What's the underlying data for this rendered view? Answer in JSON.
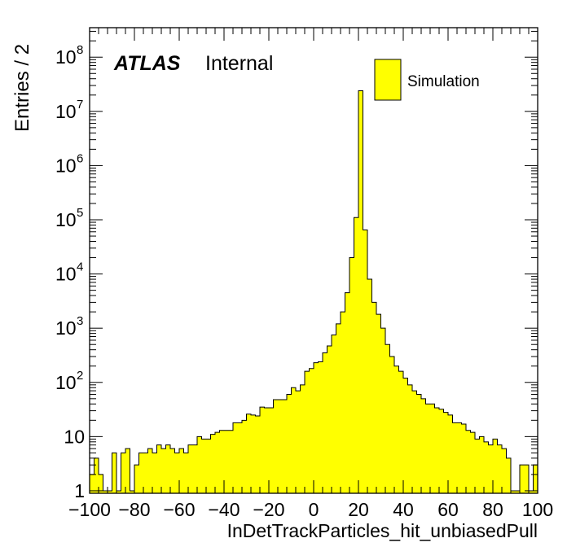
{
  "chart_data": {
    "type": "bar",
    "title": "",
    "xlabel": "InDetTrackParticles_hit_unbiasedPull",
    "ylabel": "Entries / 2",
    "xlim": [
      -100,
      100
    ],
    "ylim": [
      0.9,
      350000000.0
    ],
    "yscale": "log",
    "bin_width": 2,
    "bar_color": "#ffff00",
    "x_ticks": [
      "−100",
      "−80",
      "−60",
      "−40",
      "−20",
      "0",
      "20",
      "40",
      "60",
      "80",
      "100"
    ],
    "y_ticks": [
      {
        "base": "1",
        "exp": ""
      },
      {
        "base": "10",
        "exp": ""
      },
      {
        "base": "10",
        "exp": "2"
      },
      {
        "base": "10",
        "exp": "3"
      },
      {
        "base": "10",
        "exp": "4"
      },
      {
        "base": "10",
        "exp": "5"
      },
      {
        "base": "10",
        "exp": "6"
      },
      {
        "base": "10",
        "exp": "7"
      },
      {
        "base": "10",
        "exp": "8"
      }
    ],
    "annotations": {
      "atlas": "ATLAS",
      "status": "Internal"
    },
    "legend": {
      "position": "top-right",
      "label": "Simulation"
    },
    "series": [
      {
        "name": "Simulation",
        "bin_low_edges": [
          -100,
          -98,
          -96,
          -94,
          -92,
          -90,
          -88,
          -86,
          -84,
          -82,
          -80,
          -78,
          -76,
          -74,
          -72,
          -70,
          -68,
          -66,
          -64,
          -62,
          -60,
          -58,
          -56,
          -54,
          -52,
          -50,
          -48,
          -46,
          -44,
          -42,
          -40,
          -38,
          -36,
          -34,
          -32,
          -30,
          -28,
          -26,
          -24,
          -22,
          -20,
          -18,
          -16,
          -14,
          -12,
          -10,
          -8,
          -6,
          -4,
          -2,
          0,
          2,
          4,
          6,
          8,
          10,
          12,
          14,
          16,
          18,
          20,
          22,
          24,
          26,
          28,
          30,
          32,
          34,
          36,
          38,
          40,
          42,
          44,
          46,
          48,
          50,
          52,
          54,
          56,
          58,
          60,
          62,
          64,
          66,
          68,
          70,
          72,
          74,
          76,
          78,
          80,
          82,
          84,
          86,
          88,
          90,
          92,
          94,
          96,
          98
        ],
        "values": [
          2,
          4,
          2,
          1,
          1,
          5,
          1,
          5,
          6,
          1,
          3,
          5,
          5,
          6,
          5,
          7,
          6,
          7,
          6,
          5,
          6,
          5,
          7,
          7,
          10,
          9,
          9,
          11,
          12,
          13,
          13,
          13,
          18,
          18,
          20,
          26,
          25,
          24,
          35,
          34,
          34,
          48,
          48,
          48,
          60,
          80,
          70,
          90,
          160,
          180,
          230,
          240,
          350,
          470,
          750,
          1200,
          2000,
          4500,
          20000,
          110000,
          24000000,
          65000,
          8000,
          3000,
          1800,
          1000,
          500,
          300,
          200,
          160,
          120,
          90,
          70,
          60,
          50,
          40,
          40,
          34,
          32,
          28,
          25,
          18,
          18,
          17,
          13,
          12,
          9,
          10,
          8,
          7,
          9,
          7,
          6,
          4,
          1,
          1,
          3,
          3,
          1,
          3
        ]
      }
    ]
  }
}
